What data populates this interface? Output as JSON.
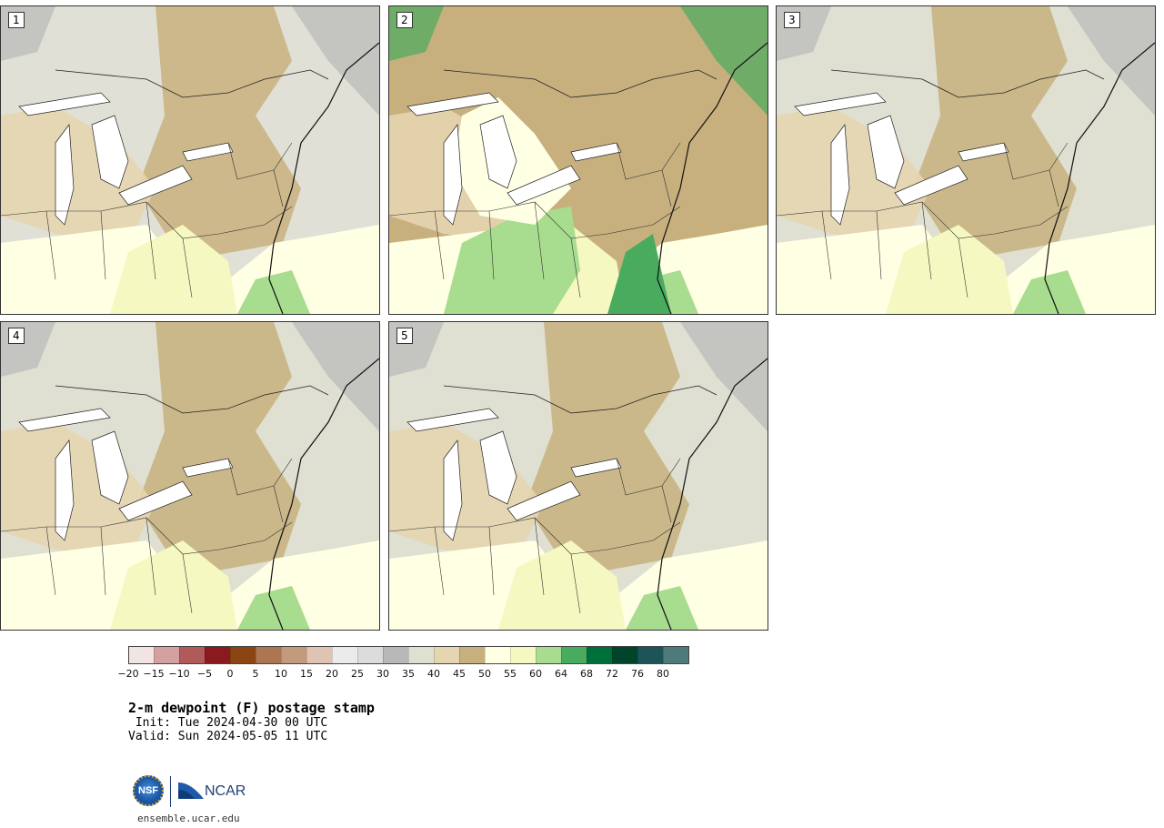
{
  "panels": [
    {
      "label": "1"
    },
    {
      "label": "2"
    },
    {
      "label": "3"
    },
    {
      "label": "4"
    },
    {
      "label": "5"
    }
  ],
  "colorbar": {
    "colors": [
      "#f2e4e4",
      "#d4a0a0",
      "#b05a5a",
      "#8b1a1f",
      "#8b4513",
      "#ad7650",
      "#c49a7f",
      "#dfc4b4",
      "#ebebeb",
      "#dcdcdc",
      "#b8b8b8",
      "#dfe0d2",
      "#e5d5b0",
      "#c8b07e",
      "#ffffe4",
      "#f5f8c0",
      "#a8dc8e",
      "#48ab5e",
      "#00703a",
      "#00452a",
      "#1d5458",
      "#4f7a7c"
    ],
    "ticks": [
      "−20",
      "−15",
      "−10",
      "−5",
      "0",
      "5",
      "10",
      "15",
      "20",
      "25",
      "30",
      "35",
      "40",
      "45",
      "50",
      "55",
      "60",
      "64",
      "68",
      "72",
      "76",
      "80"
    ]
  },
  "title": "2-m dewpoint (F) postage stamp",
  "init": " Init: Tue 2024-04-30 00 UTC",
  "valid": "Valid: Sun 2024-05-05 11 UTC",
  "logos": {
    "nsf": "NSF",
    "ncar": "NCAR"
  },
  "site": "ensemble.ucar.edu"
}
